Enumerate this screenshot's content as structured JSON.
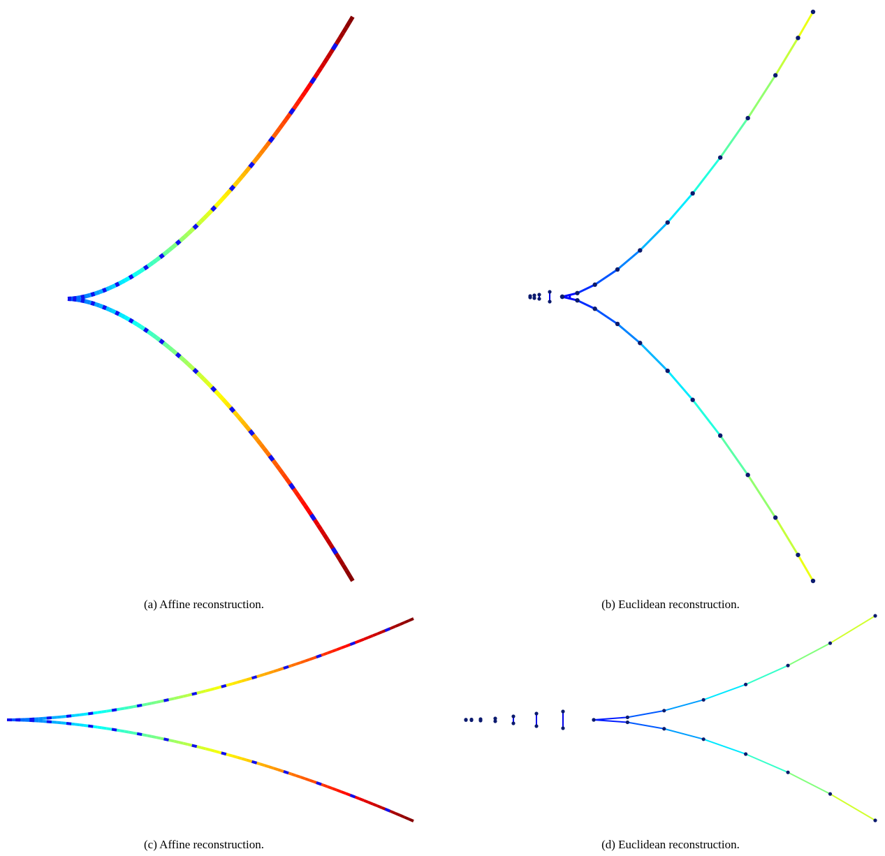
{
  "figures": [
    {
      "id": "a",
      "caption": "(a) Affine reconstruction."
    },
    {
      "id": "b",
      "caption": "(b) Euclidean reconstruction."
    },
    {
      "id": "c",
      "caption": "(c) Affine reconstruction."
    },
    {
      "id": "d",
      "caption": "(d) Euclidean reconstruction."
    }
  ],
  "colors": {
    "marker_blue": "#1010ee",
    "node_dark": "#0b1a6e",
    "jet_stops": [
      "#00008f",
      "#0000ff",
      "#0080ff",
      "#00ffff",
      "#80ff80",
      "#ffff00",
      "#ff8000",
      "#ff0000",
      "#800000"
    ]
  }
}
